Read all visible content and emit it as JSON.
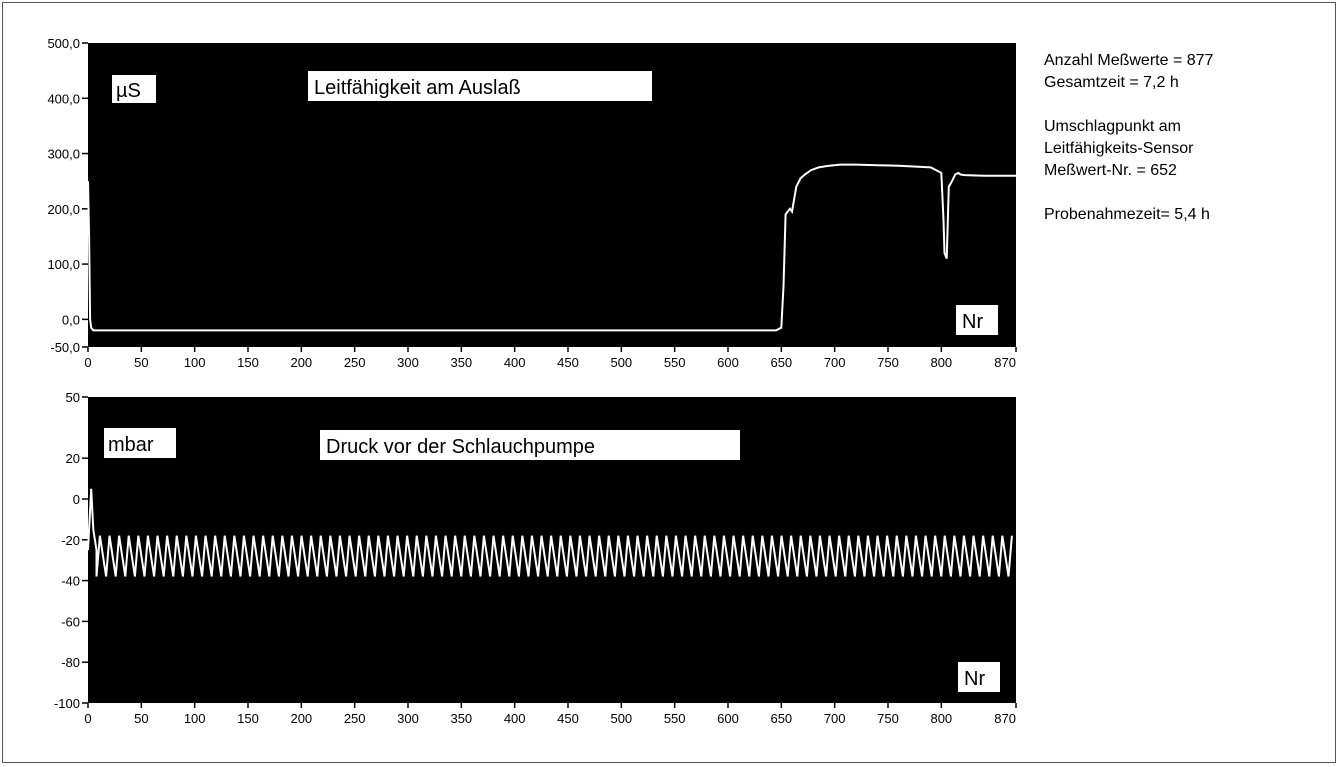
{
  "colors": {
    "plot_background": "#000000",
    "trace": "#ffffff",
    "label_box": "#ffffff",
    "text": "#000000"
  },
  "info": {
    "line1": "Anzahl Meßwerte = 877",
    "line2": "Gesamtzeit = 7,2 h",
    "line3": "Umschlagpunkt am",
    "line4": "Leitfähigkeits-Sensor",
    "line5": "Meßwert-Nr. = 652",
    "line6": "Probenahmezeit= 5,4 h"
  },
  "chart_data": [
    {
      "type": "line",
      "title": "Leitfähigkeit am Auslaß",
      "unit_label": "µS",
      "xlabel": "Nr",
      "xlim": [
        0,
        870
      ],
      "ylim": [
        -50,
        500
      ],
      "x_ticks": [
        0,
        50,
        100,
        150,
        200,
        250,
        300,
        350,
        400,
        450,
        500,
        550,
        600,
        650,
        700,
        750,
        800,
        870
      ],
      "x_tick_labels": [
        "0",
        "50",
        "100",
        "150",
        "200",
        "250",
        "300",
        "350",
        "400",
        "450",
        "500",
        "550",
        "600",
        "650",
        "700",
        "750",
        "800",
        "870"
      ],
      "y_ticks": [
        500,
        400,
        300,
        200,
        100,
        0,
        -50
      ],
      "y_tick_labels": [
        "500,0",
        "400,0",
        "300,0",
        "200,0",
        "100,0",
        "0,0",
        "-50,0"
      ],
      "grid": false,
      "series": [
        {
          "x": [
            0,
            1,
            2,
            3,
            5,
            8,
            15,
            100,
            200,
            300,
            400,
            500,
            600,
            645,
            650,
            652,
            654,
            658,
            660,
            664,
            668,
            672,
            678,
            685,
            695,
            705,
            720,
            740,
            760,
            790,
            800,
            802,
            803,
            805,
            807,
            810,
            813,
            816,
            818,
            822,
            840,
            870
          ],
          "y": [
            250,
            150,
            0,
            -15,
            -20,
            -20,
            -20,
            -20,
            -20,
            -20,
            -20,
            -20,
            -20,
            -20,
            -15,
            60,
            190,
            200,
            195,
            240,
            255,
            262,
            270,
            275,
            278,
            280,
            280,
            279,
            278,
            275,
            265,
            180,
            120,
            110,
            240,
            250,
            262,
            265,
            262,
            261,
            260,
            260
          ]
        }
      ]
    },
    {
      "type": "line",
      "title": "Druck vor der Schlauchpumpe",
      "unit_label": "mbar",
      "xlabel": "Nr",
      "xlim": [
        0,
        870
      ],
      "ylim": [
        -100,
        50
      ],
      "x_ticks": [
        0,
        50,
        100,
        150,
        200,
        250,
        300,
        350,
        400,
        450,
        500,
        550,
        600,
        650,
        700,
        750,
        800,
        870
      ],
      "x_tick_labels": [
        "0",
        "50",
        "100",
        "150",
        "200",
        "250",
        "300",
        "350",
        "400",
        "450",
        "500",
        "550",
        "600",
        "650",
        "700",
        "750",
        "800",
        "870"
      ],
      "y_ticks": [
        50,
        20,
        0,
        -20,
        -40,
        -60,
        -80,
        -100
      ],
      "y_tick_labels": [
        "50",
        "20",
        "0",
        "-20",
        "-40",
        "-60",
        "-80",
        "-100"
      ],
      "grid": false,
      "series": [
        {
          "pattern": "sawtooth",
          "start_x": [
            0,
            3,
            5,
            8
          ],
          "start_y": [
            -25,
            5,
            -15,
            -25
          ],
          "x_from": 8,
          "x_to": 870,
          "period": 9,
          "high": -18,
          "low": -38
        }
      ]
    }
  ]
}
